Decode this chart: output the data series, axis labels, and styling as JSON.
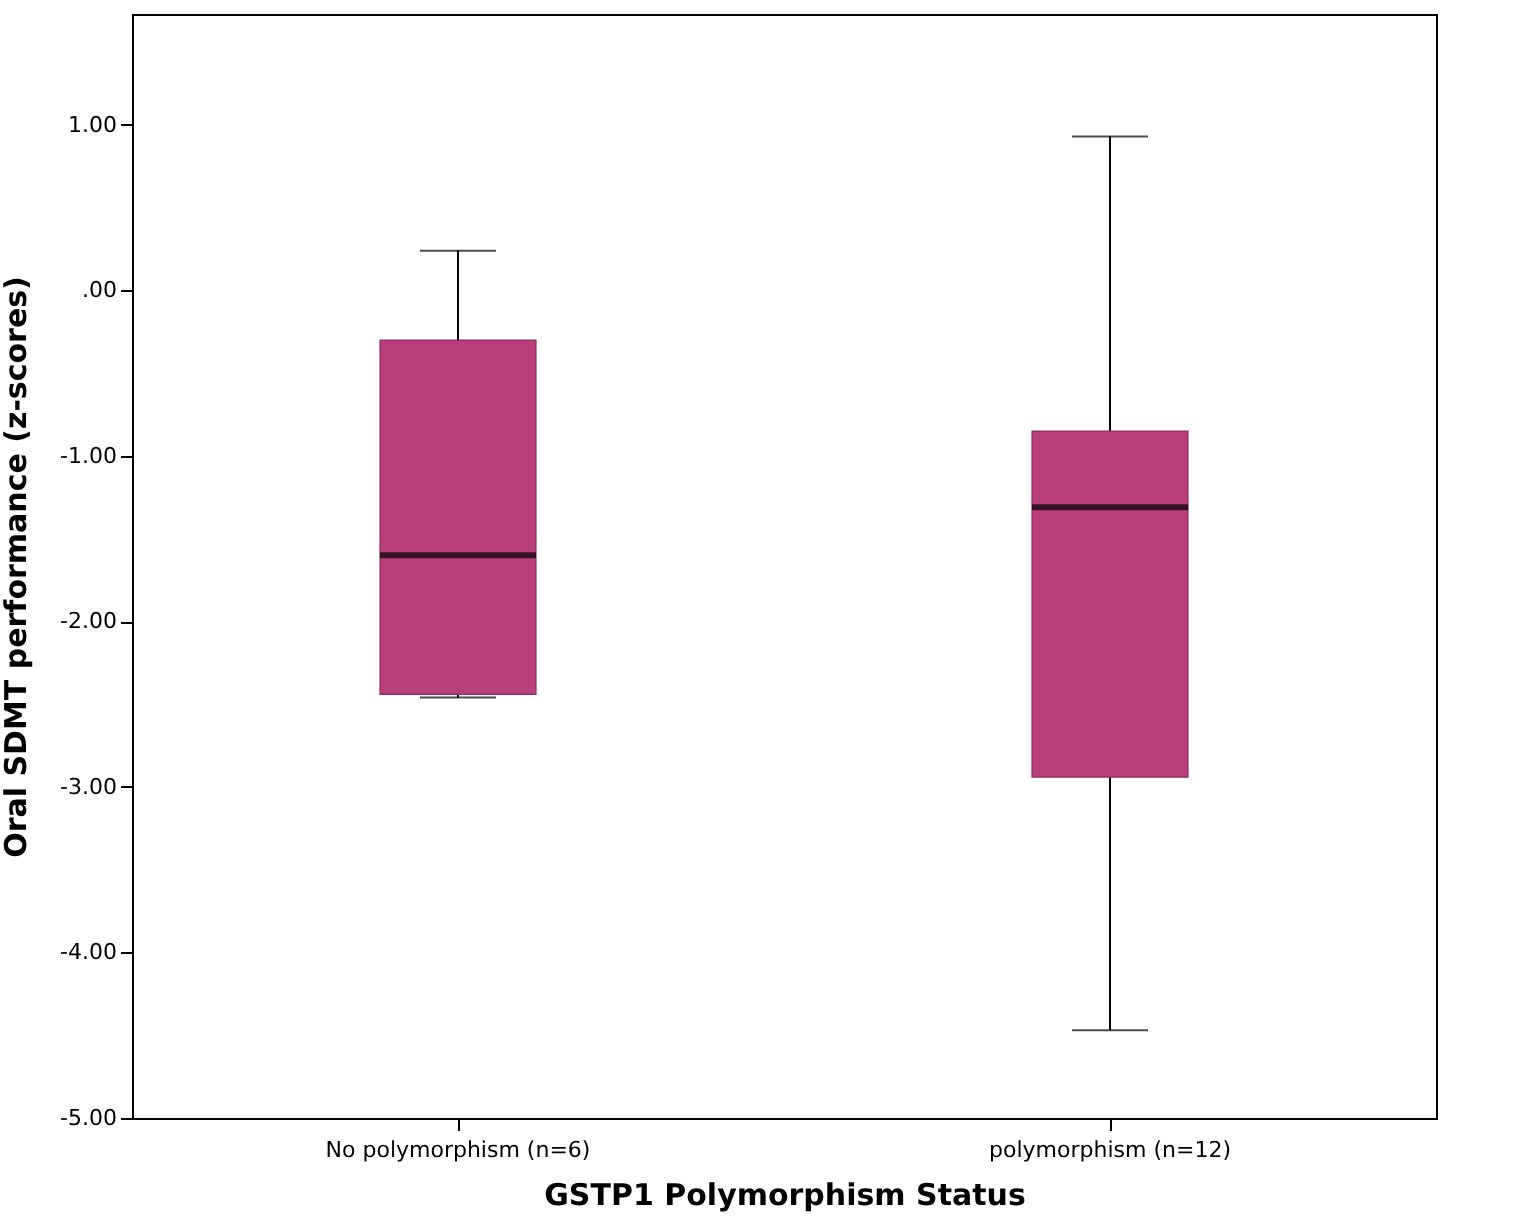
{
  "chart_data": {
    "type": "box",
    "xlabel": "GSTP1 Polymorphism Status",
    "ylabel": "Oral SDMT performance (z-scores)",
    "categories": [
      "No polymorphism (n=6)",
      "polymorphism (n=12)"
    ],
    "boxes": [
      {
        "low": -2.46,
        "q1": -2.44,
        "median": -1.6,
        "q3": -0.3,
        "high": 0.24
      },
      {
        "low": -4.47,
        "q1": -2.94,
        "median": -1.31,
        "q3": -0.85,
        "high": 0.93
      }
    ],
    "color": "#b83e7c",
    "ylim": [
      -5,
      1.67
    ],
    "yticks": [
      {
        "value": -5,
        "label": "-5.00"
      },
      {
        "value": -4,
        "label": "-4.00"
      },
      {
        "value": -3,
        "label": "-3.00"
      },
      {
        "value": -2,
        "label": "-2.00"
      },
      {
        "value": -1,
        "label": "-1.00"
      },
      {
        "value": 0,
        "label": ".00"
      },
      {
        "value": 1,
        "label": "1.00"
      }
    ],
    "grid": false
  }
}
